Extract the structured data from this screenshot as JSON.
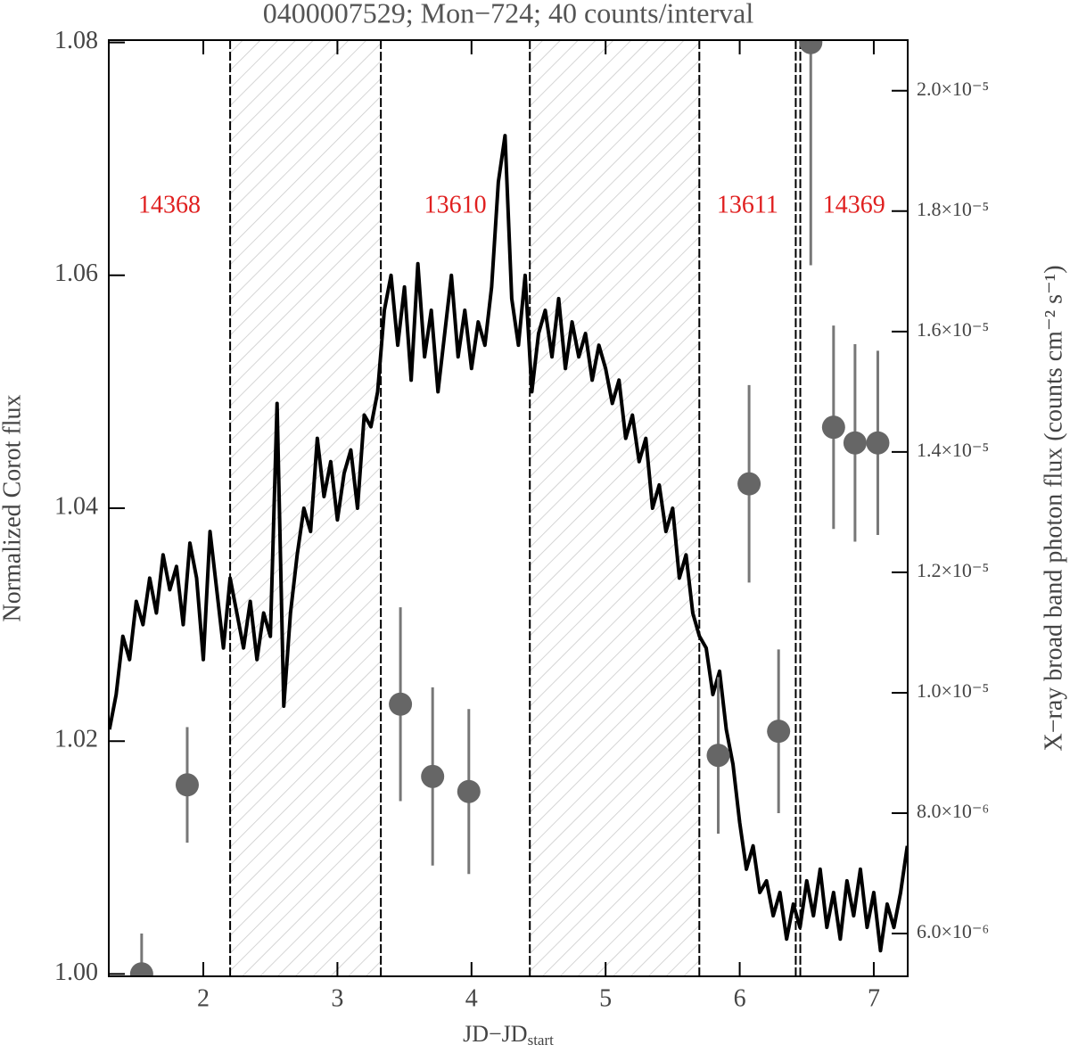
{
  "chart_data": {
    "type": "line",
    "title": "0400007529; Mon−724; 40 counts/interval",
    "xlabel": "JD−JD",
    "xlabel_sub": "start",
    "ylabel": "Normalized Corot flux",
    "y2label": "X−ray broad band photon flux (counts cm⁻² s⁻¹)",
    "xlim": [
      1.295,
      7.253
    ],
    "ylim": [
      0.9998,
      1.0802
    ],
    "y2lim": [
      5.29e-06,
      2.084e-05
    ],
    "xticks": [
      2,
      3,
      4,
      5,
      6,
      7
    ],
    "yticks": [
      {
        "value": 1,
        "label": "1.00"
      },
      1.02,
      1.04,
      1.06,
      1.08
    ],
    "y2ticks": [
      {
        "value": 6e-06,
        "label": "6.0×10⁻⁶"
      },
      {
        "value": 8e-06,
        "label": "8.0×10⁻⁶"
      },
      {
        "value": 1e-05,
        "label": "1.0×10⁻⁵"
      },
      {
        "value": 1.2e-05,
        "label": "1.2×10⁻⁵"
      },
      {
        "value": 1.4e-05,
        "label": "1.4×10⁻⁵"
      },
      {
        "value": 1.6e-05,
        "label": "1.6×10⁻⁵"
      },
      {
        "value": 1.8e-05,
        "label": "1.8×10⁻⁵"
      },
      {
        "value": 2e-05,
        "label": "2.0×10⁻⁵"
      }
    ],
    "boundaries": [
      2.2,
      3.324,
      4.435,
      5.699,
      6.418,
      6.452
    ],
    "shaded": [
      [
        2.2,
        3.324
      ],
      [
        4.435,
        5.699
      ]
    ],
    "annotations": [
      "14368",
      "13610",
      "13611",
      "14369"
    ],
    "annotation_color": "#e02020",
    "series": [
      {
        "color": "#000000",
        "x": [
          1.3,
          1.35,
          1.4,
          1.45,
          1.5,
          1.55,
          1.6,
          1.65,
          1.7,
          1.75,
          1.8,
          1.85,
          1.9,
          1.95,
          2.0,
          2.05,
          2.1,
          2.15,
          2.2,
          2.25,
          2.3,
          2.35,
          2.4,
          2.45,
          2.5,
          2.55,
          2.6,
          2.65,
          2.7,
          2.75,
          2.8,
          2.85,
          2.9,
          2.95,
          3.0,
          3.05,
          3.1,
          3.15,
          3.2,
          3.25,
          3.3,
          3.35,
          3.4,
          3.45,
          3.5,
          3.55,
          3.6,
          3.65,
          3.7,
          3.75,
          3.8,
          3.85,
          3.9,
          3.95,
          4.0,
          4.05,
          4.1,
          4.15,
          4.2,
          4.25,
          4.3,
          4.35,
          4.4,
          4.45,
          4.5,
          4.55,
          4.6,
          4.65,
          4.7,
          4.75,
          4.8,
          4.85,
          4.9,
          4.95,
          5.0,
          5.05,
          5.1,
          5.15,
          5.2,
          5.25,
          5.3,
          5.35,
          5.4,
          5.45,
          5.5,
          5.55,
          5.6,
          5.65,
          5.7,
          5.75,
          5.8,
          5.85,
          5.9,
          5.95,
          6.0,
          6.05,
          6.1,
          6.15,
          6.2,
          6.25,
          6.3,
          6.35,
          6.4,
          6.45,
          6.5,
          6.55,
          6.6,
          6.65,
          6.7,
          6.75,
          6.8,
          6.85,
          6.9,
          6.95,
          7.0,
          7.05,
          7.1,
          7.15,
          7.2,
          7.25
        ],
        "values": [
          1.021,
          1.024,
          1.029,
          1.027,
          1.032,
          1.03,
          1.034,
          1.031,
          1.036,
          1.033,
          1.035,
          1.03,
          1.037,
          1.034,
          1.027,
          1.038,
          1.033,
          1.028,
          1.034,
          1.031,
          1.028,
          1.032,
          1.027,
          1.031,
          1.029,
          1.049,
          1.023,
          1.031,
          1.036,
          1.04,
          1.038,
          1.046,
          1.041,
          1.044,
          1.039,
          1.043,
          1.045,
          1.04,
          1.048,
          1.047,
          1.05,
          1.057,
          1.06,
          1.054,
          1.059,
          1.051,
          1.061,
          1.053,
          1.057,
          1.05,
          1.055,
          1.06,
          1.053,
          1.057,
          1.052,
          1.056,
          1.054,
          1.059,
          1.068,
          1.072,
          1.058,
          1.054,
          1.06,
          1.05,
          1.055,
          1.057,
          1.053,
          1.058,
          1.052,
          1.056,
          1.053,
          1.055,
          1.051,
          1.054,
          1.052,
          1.049,
          1.051,
          1.046,
          1.048,
          1.044,
          1.046,
          1.04,
          1.042,
          1.038,
          1.04,
          1.034,
          1.036,
          1.031,
          1.029,
          1.028,
          1.024,
          1.026,
          1.021,
          1.018,
          1.013,
          1.009,
          1.011,
          1.007,
          1.008,
          1.005,
          1.007,
          1.003,
          1.006,
          1.004,
          1.008,
          1.005,
          1.009,
          1.004,
          1.007,
          1.003,
          1.008,
          1.005,
          1.009,
          1.004,
          1.007,
          1.002,
          1.006,
          1.004,
          1.007,
          1.011
        ]
      },
      {
        "type": "scatter",
        "axis": "y2",
        "color": "#666666",
        "x": [
          1.54,
          1.88,
          3.47,
          3.71,
          3.98,
          5.84,
          6.07,
          6.29,
          6.53,
          6.7,
          6.86,
          7.03
        ],
        "values": [
          5.33e-06,
          8.47e-06,
          9.81e-06,
          8.61e-06,
          8.36e-06,
          8.96e-06,
          1.347e-05,
          9.36e-06,
          2.08e-05,
          1.441e-05,
          1.415e-05,
          1.415e-05
        ],
        "errors": [
          6.7e-07,
          9.6e-07,
          1.61e-06,
          1.48e-06,
          1.37e-06,
          1.3e-06,
          1.64e-06,
          1.36e-06,
          3.7e-06,
          1.69e-06,
          1.64e-06,
          1.53e-06
        ]
      }
    ]
  }
}
